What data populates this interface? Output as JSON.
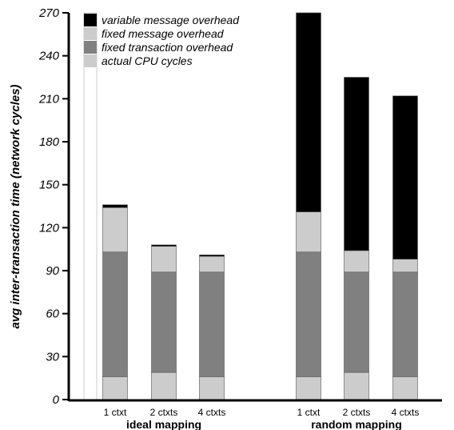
{
  "chart_data": {
    "type": "bar",
    "stacked": true,
    "ylabel": "avg inter-transaction time (network cycles)",
    "ylim": [
      0,
      270
    ],
    "yticks": [
      0,
      30,
      60,
      90,
      120,
      150,
      180,
      210,
      240,
      270
    ],
    "groups": [
      {
        "label": "ideal mapping",
        "categories": [
          "1 ctxt",
          "2 ctxts",
          "4 ctxts"
        ]
      },
      {
        "label": "random mapping",
        "categories": [
          "1 ctxt",
          "2 ctxts",
          "4 ctxts"
        ]
      }
    ],
    "series": [
      {
        "name": "actual CPU cycles",
        "color": "#cccccc",
        "values": [
          16,
          19,
          16,
          16,
          19,
          16
        ]
      },
      {
        "name": "fixed transaction overhead",
        "color": "#808080",
        "values": [
          87,
          70,
          73,
          87,
          70,
          73
        ]
      },
      {
        "name": "fixed message overhead",
        "color": "#cccccc",
        "values": [
          31,
          18,
          11,
          28,
          15,
          9
        ]
      },
      {
        "name": "variable message overhead",
        "color": "#000000",
        "values": [
          2,
          1,
          1,
          139,
          121,
          114
        ]
      }
    ],
    "legend": {
      "position": "top-left",
      "order": [
        "variable message overhead",
        "fixed message overhead",
        "fixed transaction overhead",
        "actual CPU cycles"
      ]
    },
    "grid": false
  }
}
